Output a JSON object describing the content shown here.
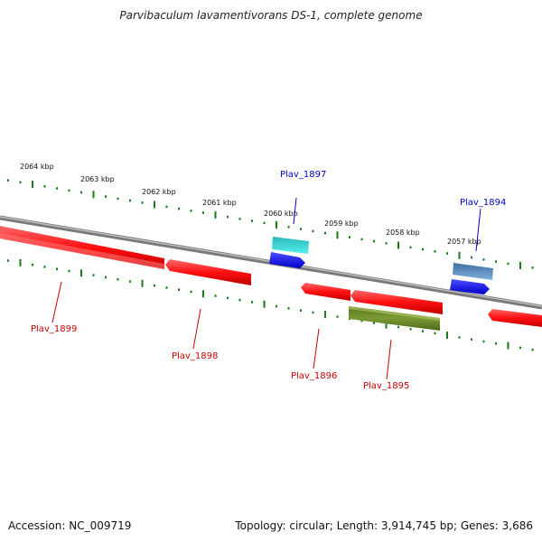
{
  "title": "Parvibaculum lavamentivorans DS-1, complete genome",
  "footer": {
    "accession": "Accession: NC_009719",
    "info": "Topology: circular; Length: 3,914,745 bp; Genes: 3,686"
  },
  "scale_labels": [
    "2064 kbp",
    "2063 kbp",
    "2062 kbp",
    "2061 kbp",
    "2060 kbp",
    "2059 kbp",
    "2058 kbp",
    "2057 kbp"
  ],
  "gene_labels": {
    "Plav_1897": "Plav_1897",
    "Plav_1894": "Plav_1894",
    "Plav_1899": "Plav_1899",
    "Plav_1898": "Plav_1898",
    "Plav_1896": "Plav_1896",
    "Plav_1895": "Plav_1895"
  },
  "colors": {
    "backbone": "#7a7a7a",
    "tick": "#1a7a1a",
    "gene_red": "#ff1a1a",
    "gene_blue": "#0000ee",
    "gene_cyan": "#22cccc",
    "gene_steel": "#4a80b8",
    "gene_olive": "#6b8c2a",
    "label_blue": "#0000cc",
    "label_red": "#cc0000"
  }
}
